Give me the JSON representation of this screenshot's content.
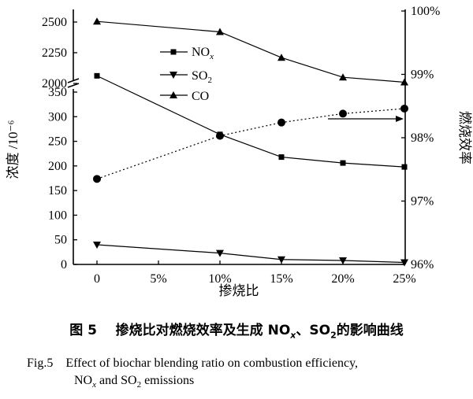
{
  "chart_data": {
    "type": "line",
    "x_label": "掺烧比",
    "categories": [
      "0",
      "5%",
      "10%",
      "15%",
      "20%",
      "25%"
    ],
    "left_axis": {
      "label": "浓度 /10⁻⁶",
      "ticks_lower": [
        "0",
        "50",
        "100",
        "150",
        "200",
        "250",
        "300",
        "350"
      ],
      "ticks_upper": [
        "2000",
        "2250",
        "2500"
      ],
      "broken_axis": true
    },
    "right_axis": {
      "label": "燃烧效率",
      "ticks": [
        "96%",
        "97%",
        "98%",
        "99%",
        "100%"
      ],
      "range": [
        96,
        100
      ]
    },
    "series": [
      {
        "name": "NOx",
        "axis": "left",
        "marker": "square",
        "line": "solid",
        "x": [
          "0",
          "10%",
          "15%",
          "20%",
          "25%"
        ],
        "values": [
          383,
          264,
          218,
          206,
          198
        ]
      },
      {
        "name": "SO2",
        "axis": "left",
        "marker": "triangle-down",
        "line": "solid",
        "x": [
          "0",
          "10%",
          "15%",
          "20%",
          "25%"
        ],
        "values": [
          40,
          23,
          10,
          8,
          4
        ]
      },
      {
        "name": "CO",
        "axis": "left",
        "marker": "triangle-up",
        "line": "solid",
        "x": [
          "0",
          "10%",
          "15%",
          "20%",
          "25%"
        ],
        "values": [
          2505,
          2420,
          2210,
          2050,
          2010
        ]
      },
      {
        "name": "",
        "axis": "right",
        "marker": "circle",
        "line": "dotted",
        "x": [
          "0",
          "10%",
          "15%",
          "20%",
          "25%"
        ],
        "values": [
          97.35,
          98.03,
          98.24,
          98.38,
          98.46
        ]
      }
    ],
    "legend": {
      "position": "center-left",
      "entries": [
        "NOx",
        "SO2",
        "CO"
      ]
    },
    "grid": false
  },
  "legend_text": {
    "nox_main": "NO",
    "nox_sub": "x",
    "so2_main": "SO",
    "so2_sub": "2",
    "co": "CO"
  },
  "caption": {
    "cn_prefix": "图 5",
    "cn_text_a": "掺烧比对燃烧效率及生成 NO",
    "cn_sub_x": "x",
    "cn_text_b": "、SO",
    "cn_sub_2": "2",
    "cn_text_c": "的影响曲线",
    "en_line1": "Fig.5    Effect of biochar blending ratio on combustion efficiency,",
    "en_line2_a": "NO",
    "en_line2_sub_x": "x",
    "en_line2_b": " and SO",
    "en_line2_sub_2": "2",
    "en_line2_c": " emissions"
  }
}
